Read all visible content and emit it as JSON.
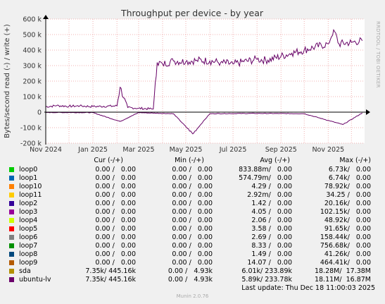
{
  "chart_data": {
    "type": "line",
    "title": "Throughput per device - by year",
    "ylabel": "Bytes/second read (-) / write (+)",
    "xlabel": "",
    "ylim": [
      -200000,
      600000
    ],
    "yticks": [
      {
        "value": 600000,
        "label": "600 k"
      },
      {
        "value": 500000,
        "label": "500 k"
      },
      {
        "value": 400000,
        "label": "400 k"
      },
      {
        "value": 300000,
        "label": "300 k"
      },
      {
        "value": 200000,
        "label": "200 k"
      },
      {
        "value": 100000,
        "label": "100 k"
      },
      {
        "value": 0,
        "label": "0"
      },
      {
        "value": -100000,
        "label": "-100 k"
      },
      {
        "value": -200000,
        "label": "-200 k"
      }
    ],
    "xlim": [
      "2024-11-01",
      "2025-12-18"
    ],
    "xticks": [
      {
        "value": "2024-11-01",
        "label": "Nov 2024"
      },
      {
        "value": "2025-01-01",
        "label": "Jan 2025"
      },
      {
        "value": "2025-03-01",
        "label": "Mar 2025"
      },
      {
        "value": "2025-05-01",
        "label": "May 2025"
      },
      {
        "value": "2025-07-01",
        "label": "Jul 2025"
      },
      {
        "value": "2025-09-01",
        "label": "Sep 2025"
      },
      {
        "value": "2025-11-01",
        "label": "Nov 2025"
      }
    ],
    "grid": true,
    "series": [
      {
        "name": "ubuntu-lv",
        "color": "#660066",
        "write_x": [
          "2024-11-01",
          "2024-11-15",
          "2024-12-01",
          "2024-12-15",
          "2025-01-01",
          "2025-01-15",
          "2025-02-01",
          "2025-02-05",
          "2025-02-15",
          "2025-03-01",
          "2025-03-20",
          "2025-03-25",
          "2025-04-01",
          "2025-04-15",
          "2025-05-01",
          "2025-05-15",
          "2025-06-01",
          "2025-06-15",
          "2025-07-01",
          "2025-07-15",
          "2025-08-01",
          "2025-08-15",
          "2025-09-01",
          "2025-09-15",
          "2025-10-01",
          "2025-10-15",
          "2025-11-01",
          "2025-11-08",
          "2025-11-15",
          "2025-12-01",
          "2025-12-15"
        ],
        "write_y": [
          35000,
          42000,
          38000,
          40000,
          36000,
          38000,
          40000,
          160000,
          30000,
          25000,
          20000,
          320000,
          310000,
          330000,
          325000,
          335000,
          330000,
          320000,
          310000,
          325000,
          340000,
          335000,
          360000,
          380000,
          400000,
          420000,
          440000,
          530000,
          440000,
          450000,
          460000
        ],
        "read_x": [
          "2024-11-01",
          "2025-01-01",
          "2025-02-05",
          "2025-03-01",
          "2025-04-15",
          "2025-05-10",
          "2025-06-01",
          "2025-08-01",
          "2025-10-01",
          "2025-11-20",
          "2025-12-15"
        ],
        "read_y": [
          -2000,
          -3000,
          -60000,
          -3000,
          -10000,
          -140000,
          -10000,
          -8000,
          -10000,
          -80000,
          -5000
        ]
      },
      {
        "name": "sda",
        "color": "#cc9900",
        "write_x": [],
        "write_y": [],
        "read_x": [],
        "read_y": []
      }
    ]
  },
  "legend": {
    "header": {
      "cur": "Cur (-/+)",
      "min": "Min (-/+)",
      "avg": "Avg (-/+)",
      "max": "Max (-/+)"
    },
    "rows": [
      {
        "name": "loop0",
        "color": "#00cc00",
        "cur": "0.00 /   0.00",
        "min": "0.00 /   0.00",
        "avg": "833.88m/   0.00",
        "max": "6.73k/   0.00"
      },
      {
        "name": "loop1",
        "color": "#0066b3",
        "cur": "0.00 /   0.00",
        "min": "0.00 /   0.00",
        "avg": "574.79m/   0.00",
        "max": "6.74k/   0.00"
      },
      {
        "name": "loop10",
        "color": "#ff8000",
        "cur": "0.00 /   0.00",
        "min": "0.00 /   0.00",
        "avg": "4.29 /   0.00",
        "max": "78.92k/   0.00"
      },
      {
        "name": "loop11",
        "color": "#ffcc00",
        "cur": "0.00 /   0.00",
        "min": "0.00 /   0.00",
        "avg": "2.92m/   0.00",
        "max": "34.25 /   0.00"
      },
      {
        "name": "loop2",
        "color": "#330099",
        "cur": "0.00 /   0.00",
        "min": "0.00 /   0.00",
        "avg": "1.42 /   0.00",
        "max": "20.16k/   0.00"
      },
      {
        "name": "loop3",
        "color": "#990099",
        "cur": "0.00 /   0.00",
        "min": "0.00 /   0.00",
        "avg": "4.05 /   0.00",
        "max": "102.15k/   0.00"
      },
      {
        "name": "loop4",
        "color": "#ccff00",
        "cur": "0.00 /   0.00",
        "min": "0.00 /   0.00",
        "avg": "2.06 /   0.00",
        "max": "48.92k/   0.00"
      },
      {
        "name": "loop5",
        "color": "#ff0000",
        "cur": "0.00 /   0.00",
        "min": "0.00 /   0.00",
        "avg": "3.58 /   0.00",
        "max": "91.65k/   0.00"
      },
      {
        "name": "loop6",
        "color": "#808080",
        "cur": "0.00 /   0.00",
        "min": "0.00 /   0.00",
        "avg": "2.69 /   0.00",
        "max": "158.44k/   0.00"
      },
      {
        "name": "loop7",
        "color": "#008f00",
        "cur": "0.00 /   0.00",
        "min": "0.00 /   0.00",
        "avg": "8.33 /   0.00",
        "max": "756.68k/   0.00"
      },
      {
        "name": "loop8",
        "color": "#00487d",
        "cur": "0.00 /   0.00",
        "min": "0.00 /   0.00",
        "avg": "1.49 /   0.00",
        "max": "41.26k/   0.00"
      },
      {
        "name": "loop9",
        "color": "#b35a00",
        "cur": "0.00 /   0.00",
        "min": "0.00 /   0.00",
        "avg": "14.07 /   0.00",
        "max": "464.41k/   0.00"
      },
      {
        "name": "sda",
        "color": "#b38f00",
        "cur": "7.35k/ 445.16k",
        "min": "0.00 /   4.93k",
        "avg": "6.01k/ 233.89k",
        "max": "18.28M/  17.38M"
      },
      {
        "name": "ubuntu-lv",
        "color": "#6b006b",
        "cur": "7.35k/ 445.16k",
        "min": "0.00 /   4.93k",
        "avg": "5.89k/ 233.78k",
        "max": "18.11M/  16.87M"
      }
    ]
  },
  "last_update": "Last update: Thu Dec 18 11:00:03 2025",
  "munin_version": "Munin 2.0.76",
  "rrd_credit": "RRDTOOL / TOBI OETIKER"
}
